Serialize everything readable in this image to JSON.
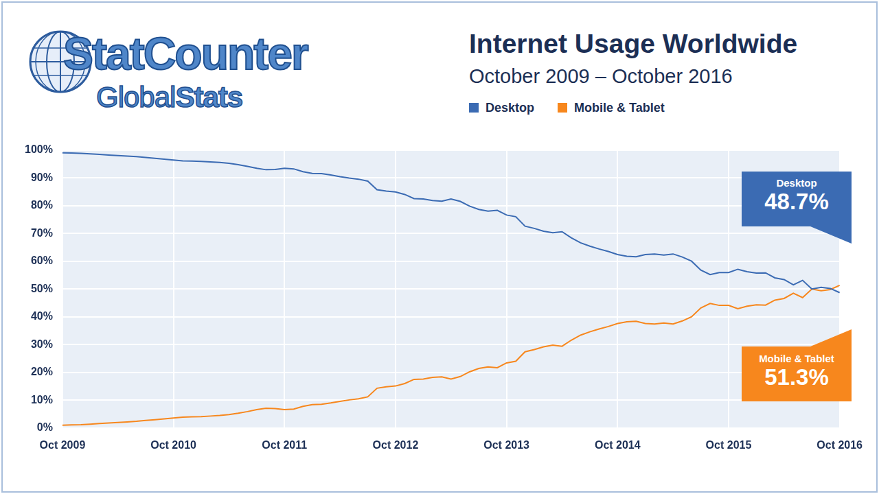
{
  "header": {
    "logo": {
      "name": "StatCounter",
      "tagline": [
        "Global",
        "Stats"
      ]
    }
  },
  "chart_data": {
    "type": "line",
    "title": "Internet Usage Worldwide",
    "subtitle": "October 2009 – October 2016",
    "categories": [
      "Oct 2009",
      null,
      null,
      null,
      null,
      null,
      null,
      null,
      null,
      null,
      null,
      null,
      "Oct 2010",
      null,
      null,
      null,
      null,
      null,
      null,
      null,
      null,
      null,
      null,
      null,
      "Oct 2011",
      null,
      null,
      null,
      null,
      null,
      null,
      null,
      null,
      null,
      null,
      null,
      "Oct 2012",
      null,
      null,
      null,
      null,
      null,
      null,
      null,
      null,
      null,
      null,
      null,
      "Oct 2013",
      null,
      null,
      null,
      null,
      null,
      null,
      null,
      null,
      null,
      null,
      null,
      "Oct 2014",
      null,
      null,
      null,
      null,
      null,
      null,
      null,
      null,
      null,
      null,
      null,
      "Oct 2015",
      null,
      null,
      null,
      null,
      null,
      null,
      null,
      null,
      null,
      null,
      null,
      "Oct 2016"
    ],
    "series": [
      {
        "name": "Desktop",
        "color": "#3b6bb3",
        "values": [
          99.0,
          98.9,
          98.8,
          98.6,
          98.4,
          98.2,
          98.0,
          97.8,
          97.6,
          97.3,
          97.0,
          96.7,
          96.4,
          96.1,
          96.0,
          95.9,
          95.7,
          95.5,
          95.2,
          94.7,
          94.1,
          93.4,
          92.9,
          93.0,
          93.4,
          93.2,
          92.2,
          91.6,
          91.5,
          91.0,
          90.4,
          89.9,
          89.5,
          88.8,
          85.7,
          85.2,
          84.9,
          84.0,
          82.5,
          82.4,
          81.8,
          81.6,
          82.4,
          81.5,
          79.8,
          78.6,
          78.0,
          78.3,
          76.6,
          76.0,
          72.6,
          71.8,
          70.8,
          70.2,
          70.6,
          68.4,
          66.6,
          65.4,
          64.4,
          63.5,
          62.4,
          61.8,
          61.6,
          62.4,
          62.6,
          62.2,
          62.6,
          61.5,
          60.0,
          56.8,
          55.2,
          55.9,
          55.9,
          57.1,
          56.2,
          55.7,
          55.8,
          54.0,
          53.4,
          51.5,
          53.1,
          50.0,
          50.6,
          50.2,
          48.7
        ]
      },
      {
        "name": "Mobile & Tablet",
        "color": "#f7871d",
        "values": [
          1.0,
          1.1,
          1.2,
          1.4,
          1.6,
          1.8,
          2.0,
          2.2,
          2.4,
          2.7,
          3.0,
          3.3,
          3.6,
          3.9,
          4.0,
          4.1,
          4.3,
          4.5,
          4.8,
          5.3,
          5.9,
          6.6,
          7.1,
          7.0,
          6.6,
          6.8,
          7.8,
          8.4,
          8.5,
          9.0,
          9.6,
          10.1,
          10.5,
          11.2,
          14.3,
          14.8,
          15.1,
          16.0,
          17.5,
          17.6,
          18.2,
          18.4,
          17.6,
          18.5,
          20.2,
          21.4,
          22.0,
          21.7,
          23.4,
          24.0,
          27.4,
          28.2,
          29.2,
          29.8,
          29.4,
          31.6,
          33.4,
          34.6,
          35.6,
          36.5,
          37.6,
          38.2,
          38.4,
          37.6,
          37.4,
          37.8,
          37.4,
          38.5,
          40.0,
          43.2,
          44.8,
          44.1,
          44.1,
          42.9,
          43.8,
          44.3,
          44.2,
          46.0,
          46.6,
          48.5,
          46.9,
          50.0,
          49.4,
          49.8,
          51.3
        ]
      }
    ],
    "ylim": [
      0,
      100
    ],
    "yticks": [
      {
        "value": 0,
        "label": "0%"
      },
      {
        "value": 10,
        "label": "10%"
      },
      {
        "value": 20,
        "label": "20%"
      },
      {
        "value": 30,
        "label": "30%"
      },
      {
        "value": 40,
        "label": "40%"
      },
      {
        "value": 50,
        "label": "50%"
      },
      {
        "value": 60,
        "label": "60%"
      },
      {
        "value": 70,
        "label": "70%"
      },
      {
        "value": 80,
        "label": "80%"
      },
      {
        "value": 90,
        "label": "90%"
      },
      {
        "value": 100,
        "label": "100%"
      }
    ],
    "grid": true,
    "legend": "top",
    "annotations": [
      {
        "text": "Desktop",
        "value": 48.7,
        "label": "48.7%",
        "color": "#3b6bb3"
      },
      {
        "text": "Mobile & Tablet",
        "value": 51.3,
        "label": "51.3%",
        "color": "#f7871d"
      }
    ]
  }
}
